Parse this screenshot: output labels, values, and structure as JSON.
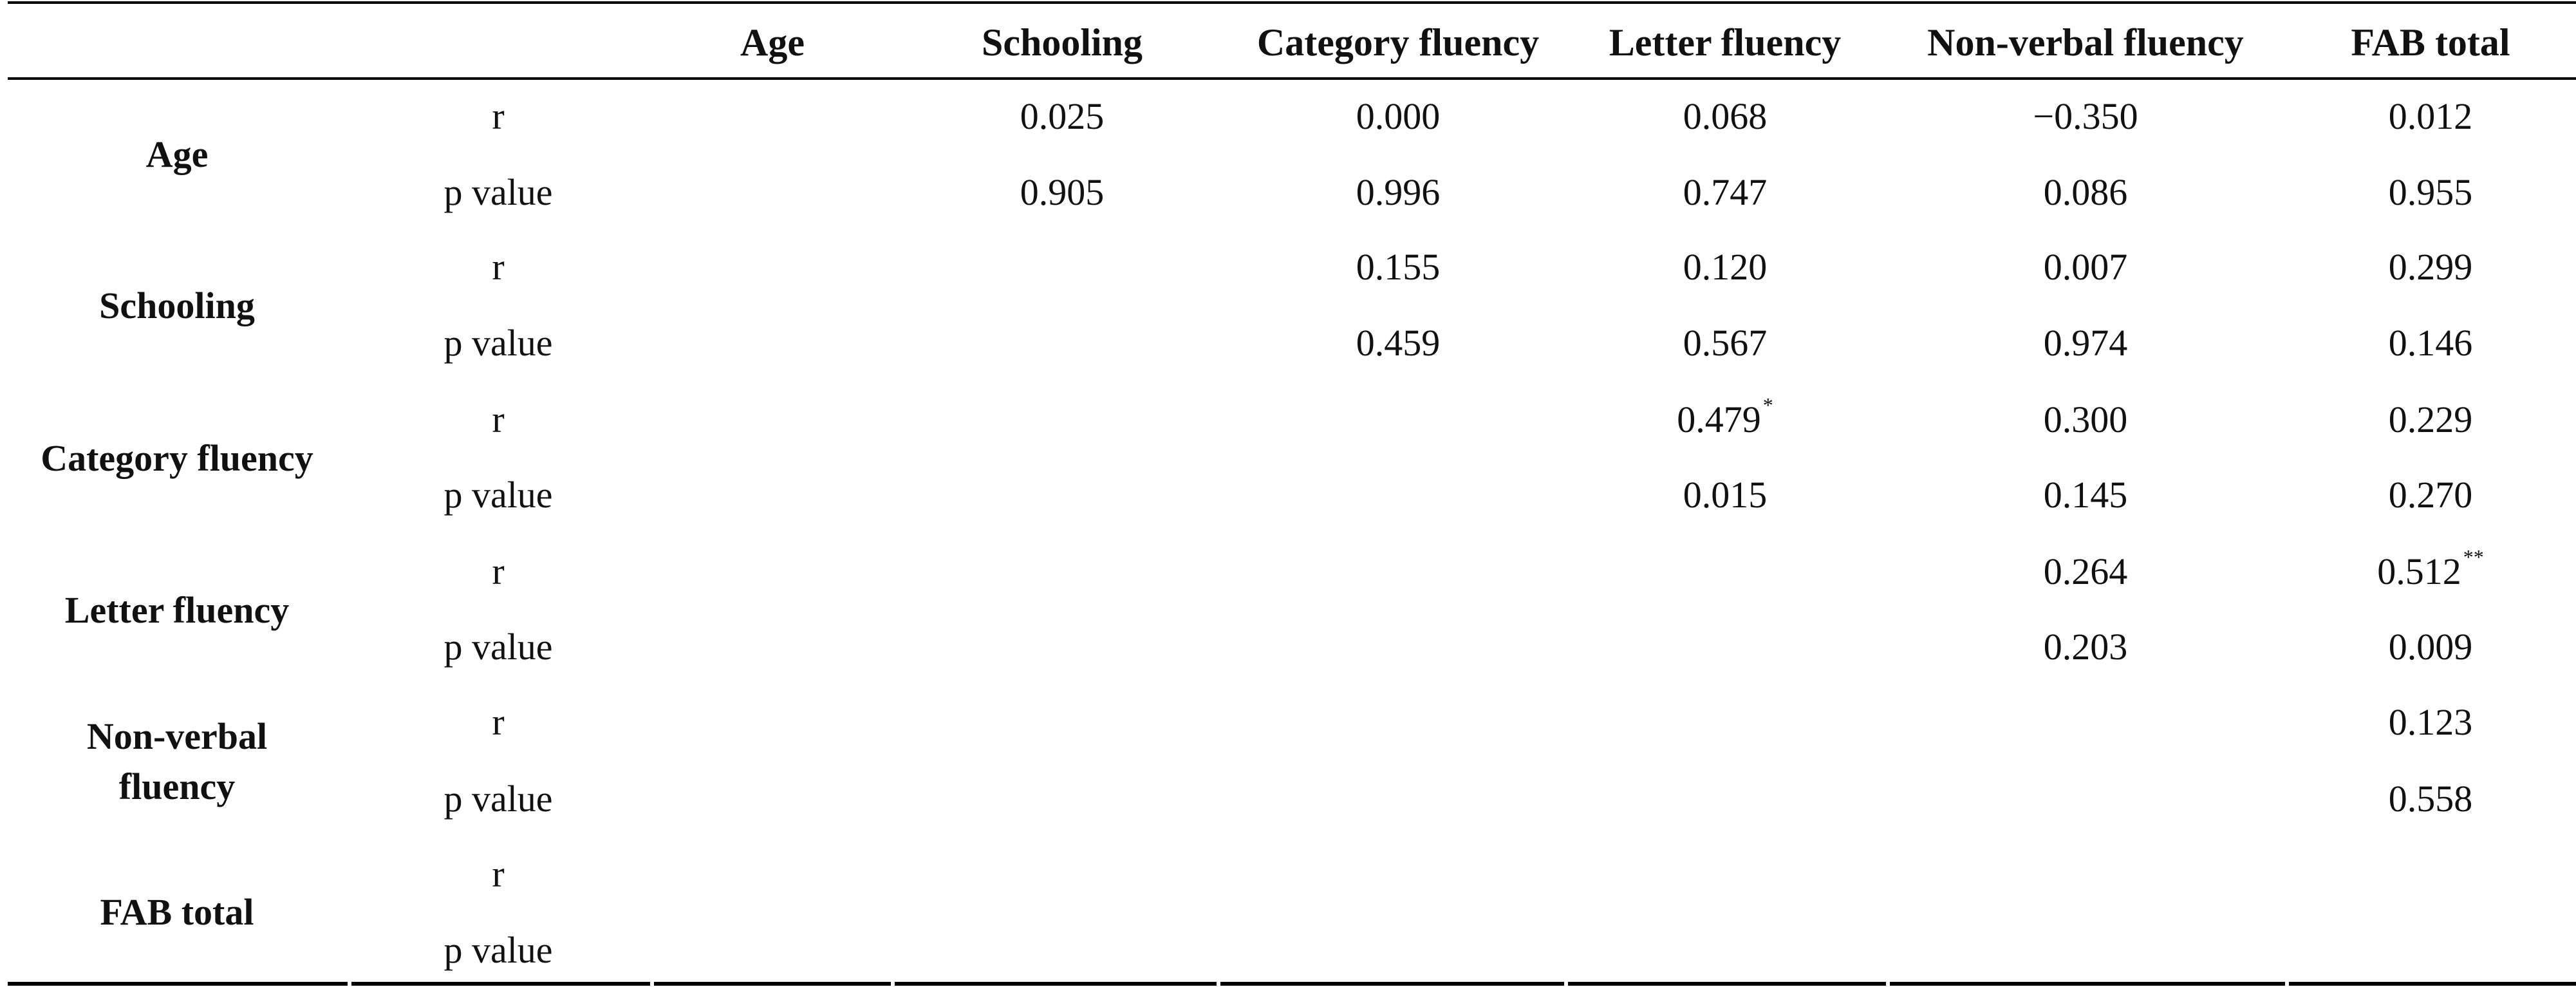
{
  "table": {
    "columns": [
      "Age",
      "Schooling",
      "Category fluency",
      "Letter fluency",
      "Non-verbal fluency",
      "FAB total"
    ],
    "stat_labels": {
      "r": "r",
      "p": "p value"
    },
    "rows": [
      {
        "label": "Age",
        "r": [
          "",
          "0.025",
          "0.000",
          "0.068",
          "−0.350",
          "0.012"
        ],
        "p": [
          "",
          "0.905",
          "0.996",
          "0.747",
          "0.086",
          "0.955"
        ]
      },
      {
        "label": "Schooling",
        "r": [
          "",
          "",
          "0.155",
          "0.120",
          "0.007",
          "0.299"
        ],
        "p": [
          "",
          "",
          "0.459",
          "0.567",
          "0.974",
          "0.146"
        ]
      },
      {
        "label": "Category fluency",
        "r": [
          "",
          "",
          "",
          "0.479",
          "0.300",
          "0.229"
        ],
        "p": [
          "",
          "",
          "",
          "0.015",
          "0.145",
          "0.270"
        ]
      },
      {
        "label": "Letter fluency",
        "r": [
          "",
          "",
          "",
          "",
          "0.264",
          "0.512"
        ],
        "p": [
          "",
          "",
          "",
          "",
          "0.203",
          "0.009"
        ]
      },
      {
        "label_line1": "Non-verbal",
        "label_line2": "fluency",
        "r": [
          "",
          "",
          "",
          "",
          "",
          "0.123"
        ],
        "p": [
          "",
          "",
          "",
          "",
          "",
          "0.558"
        ]
      },
      {
        "label": "FAB total",
        "r": [
          "",
          "",
          "",
          "",
          "",
          ""
        ],
        "p": [
          "",
          "",
          "",
          "",
          "",
          ""
        ]
      }
    ],
    "significance_marks": {
      "category_letter_r": "*",
      "letter_fab_r": "**"
    }
  }
}
